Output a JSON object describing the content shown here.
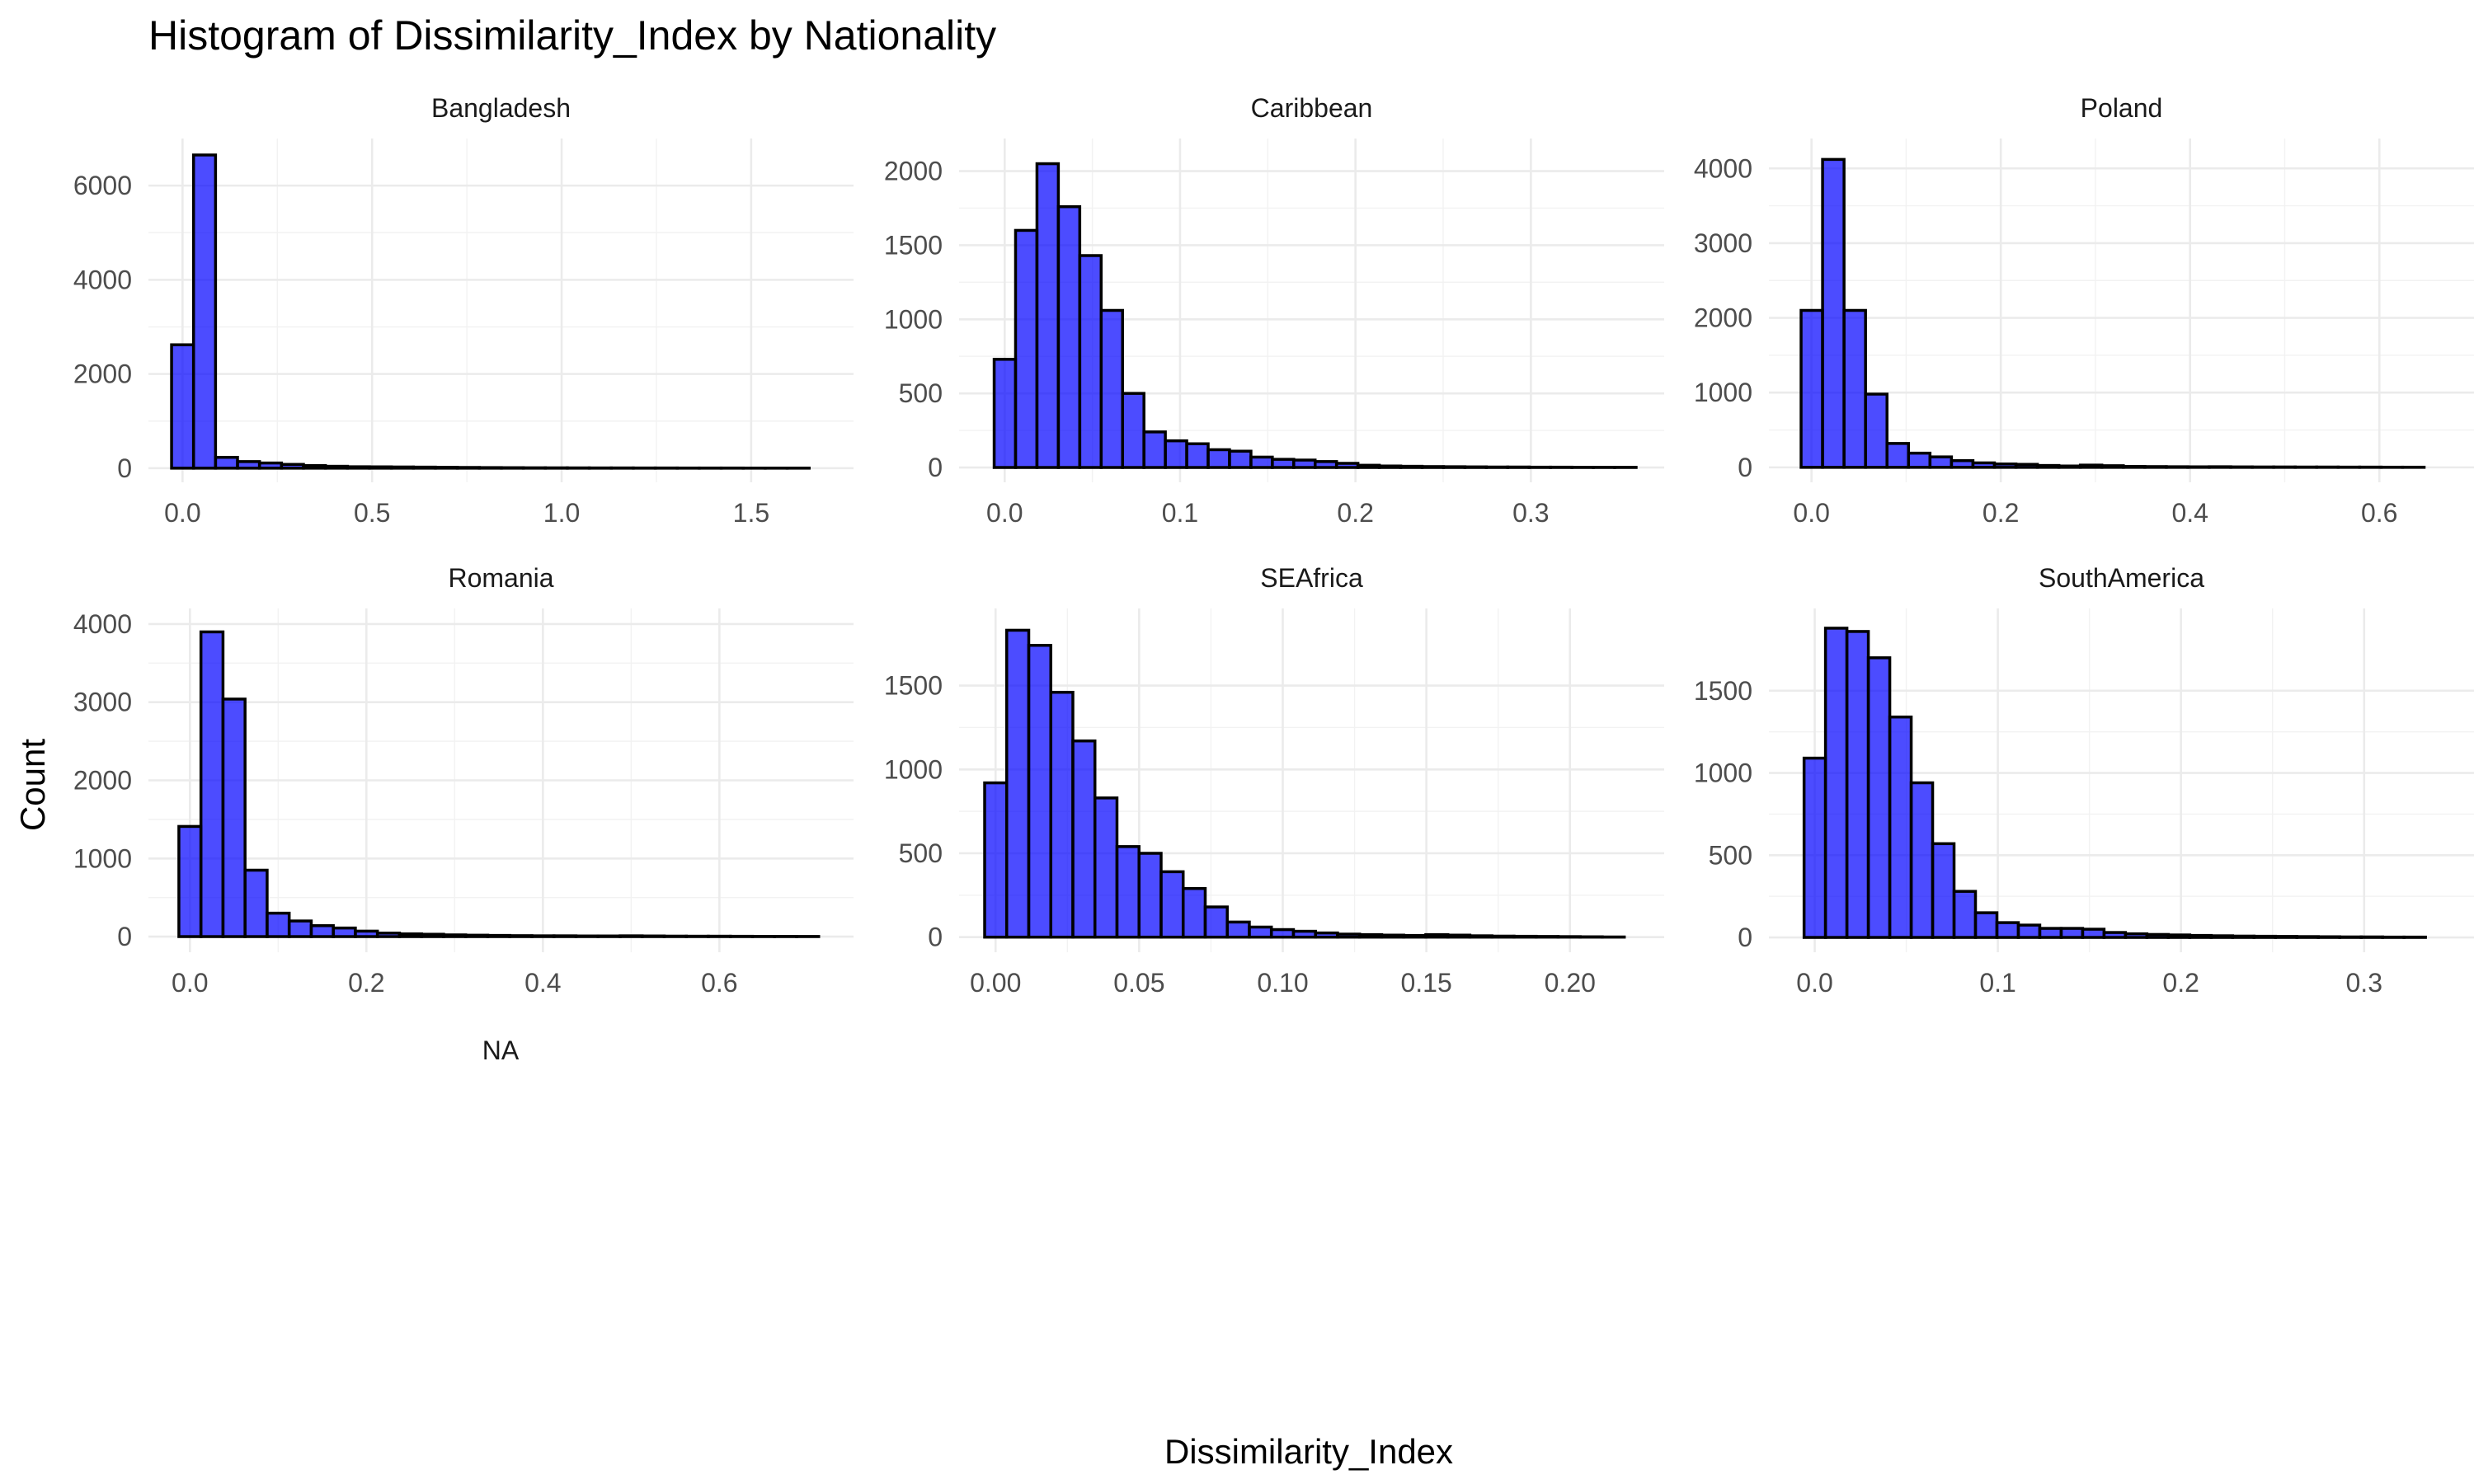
{
  "chart_data": {
    "type": "bar",
    "title": "Histogram of Dissimilarity_Index by Nationality",
    "xlabel": "Dissimilarity_Index",
    "ylabel": "Count",
    "na_label": "NA",
    "bar_color": "#0000ff",
    "bar_outline": "#000000",
    "grid": true,
    "legend": "none",
    "panels": [
      {
        "name": "Bangladesh",
        "bin_start": -0.029,
        "bin_width": 0.058,
        "counts": [
          2620,
          6650,
          230,
          140,
          110,
          80,
          55,
          40,
          30,
          28,
          25,
          22,
          18,
          15,
          12,
          10,
          8,
          7,
          6,
          5,
          5,
          4,
          4,
          3,
          3,
          3,
          2,
          2,
          2
        ],
        "xlim": [
          -0.09,
          1.77
        ],
        "ylim": [
          -300,
          7000
        ],
        "xticks": [
          {
            "value": 0.0,
            "label": "0.0"
          },
          {
            "value": 0.5,
            "label": "0.5"
          },
          {
            "value": 1.0,
            "label": "1.0"
          },
          {
            "value": 1.5,
            "label": "1.5"
          }
        ],
        "yticks": [
          {
            "value": 0,
            "label": "0"
          },
          {
            "value": 2000,
            "label": "2000"
          },
          {
            "value": 4000,
            "label": "4000"
          },
          {
            "value": 6000,
            "label": "6000"
          }
        ]
      },
      {
        "name": "Caribbean",
        "bin_start": -0.006,
        "bin_width": 0.0122,
        "counts": [
          730,
          1600,
          2050,
          1760,
          1430,
          1060,
          500,
          240,
          180,
          160,
          120,
          110,
          70,
          55,
          50,
          40,
          28,
          15,
          10,
          8,
          6,
          5,
          4,
          3,
          3,
          2,
          2,
          1,
          1,
          1
        ],
        "xlim": [
          -0.026,
          0.376
        ],
        "ylim": [
          -100,
          2220
        ],
        "xticks": [
          {
            "value": 0.0,
            "label": "0.0"
          },
          {
            "value": 0.1,
            "label": "0.1"
          },
          {
            "value": 0.2,
            "label": "0.2"
          },
          {
            "value": 0.3,
            "label": "0.3"
          }
        ],
        "yticks": [
          {
            "value": 0,
            "label": "0"
          },
          {
            "value": 500,
            "label": "500"
          },
          {
            "value": 1000,
            "label": "1000"
          },
          {
            "value": 1500,
            "label": "1500"
          },
          {
            "value": 2000,
            "label": "2000"
          }
        ]
      },
      {
        "name": "Poland",
        "bin_start": -0.011,
        "bin_width": 0.0227,
        "counts": [
          2100,
          4120,
          2100,
          980,
          320,
          190,
          140,
          90,
          60,
          45,
          40,
          25,
          18,
          30,
          22,
          12,
          10,
          8,
          7,
          8,
          6,
          5,
          5,
          4,
          4,
          3,
          3,
          2,
          2
        ],
        "xlim": [
          -0.045,
          0.7
        ],
        "ylim": [
          -200,
          4400
        ],
        "xticks": [
          {
            "value": 0.0,
            "label": "0.0"
          },
          {
            "value": 0.2,
            "label": "0.2"
          },
          {
            "value": 0.4,
            "label": "0.4"
          },
          {
            "value": 0.6,
            "label": "0.6"
          }
        ],
        "yticks": [
          {
            "value": 0,
            "label": "0"
          },
          {
            "value": 1000,
            "label": "1000"
          },
          {
            "value": 2000,
            "label": "2000"
          },
          {
            "value": 3000,
            "label": "3000"
          },
          {
            "value": 4000,
            "label": "4000"
          }
        ]
      },
      {
        "name": "Romania",
        "bin_start": -0.0125,
        "bin_width": 0.025,
        "counts": [
          1410,
          3900,
          3040,
          850,
          300,
          200,
          140,
          110,
          70,
          45,
          35,
          30,
          22,
          18,
          15,
          12,
          10,
          10,
          8,
          8,
          10,
          8,
          6,
          5,
          5,
          4,
          3,
          3,
          2
        ],
        "xlim": [
          -0.047,
          0.752
        ],
        "ylim": [
          -200,
          4200
        ],
        "xticks": [
          {
            "value": 0.0,
            "label": "0.0"
          },
          {
            "value": 0.2,
            "label": "0.2"
          },
          {
            "value": 0.4,
            "label": "0.4"
          },
          {
            "value": 0.6,
            "label": "0.6"
          }
        ],
        "yticks": [
          {
            "value": 0,
            "label": "0"
          },
          {
            "value": 1000,
            "label": "1000"
          },
          {
            "value": 2000,
            "label": "2000"
          },
          {
            "value": 3000,
            "label": "3000"
          },
          {
            "value": 4000,
            "label": "4000"
          }
        ]
      },
      {
        "name": "SEAfrica",
        "bin_start": -0.0038,
        "bin_width": 0.00768,
        "counts": [
          920,
          1830,
          1740,
          1460,
          1170,
          830,
          540,
          500,
          390,
          290,
          180,
          90,
          60,
          45,
          35,
          25,
          18,
          15,
          12,
          10,
          15,
          12,
          8,
          6,
          5,
          4,
          3,
          2,
          1
        ],
        "xlim": [
          -0.0127,
          0.2328
        ],
        "ylim": [
          -90,
          1960
        ],
        "xticks": [
          {
            "value": 0.0,
            "label": "0.00"
          },
          {
            "value": 0.05,
            "label": "0.05"
          },
          {
            "value": 0.1,
            "label": "0.10"
          },
          {
            "value": 0.15,
            "label": "0.15"
          },
          {
            "value": 0.2,
            "label": "0.20"
          }
        ],
        "yticks": [
          {
            "value": 0,
            "label": "0"
          },
          {
            "value": 500,
            "label": "500"
          },
          {
            "value": 1000,
            "label": "1000"
          },
          {
            "value": 1500,
            "label": "1500"
          }
        ]
      },
      {
        "name": "SouthAmerica",
        "bin_start": -0.0058,
        "bin_width": 0.0117,
        "counts": [
          1090,
          1880,
          1860,
          1700,
          1340,
          940,
          570,
          280,
          150,
          90,
          75,
          55,
          55,
          50,
          30,
          22,
          18,
          15,
          12,
          10,
          8,
          7,
          6,
          5,
          4,
          3,
          3,
          2,
          2
        ],
        "xlim": [
          -0.025,
          0.36
        ],
        "ylim": [
          -90,
          2000
        ],
        "xticks": [
          {
            "value": 0.0,
            "label": "0.0"
          },
          {
            "value": 0.1,
            "label": "0.1"
          },
          {
            "value": 0.2,
            "label": "0.2"
          },
          {
            "value": 0.3,
            "label": "0.3"
          }
        ],
        "yticks": [
          {
            "value": 0,
            "label": "0"
          },
          {
            "value": 500,
            "label": "500"
          },
          {
            "value": 1000,
            "label": "1000"
          },
          {
            "value": 1500,
            "label": "1500"
          }
        ]
      }
    ]
  }
}
